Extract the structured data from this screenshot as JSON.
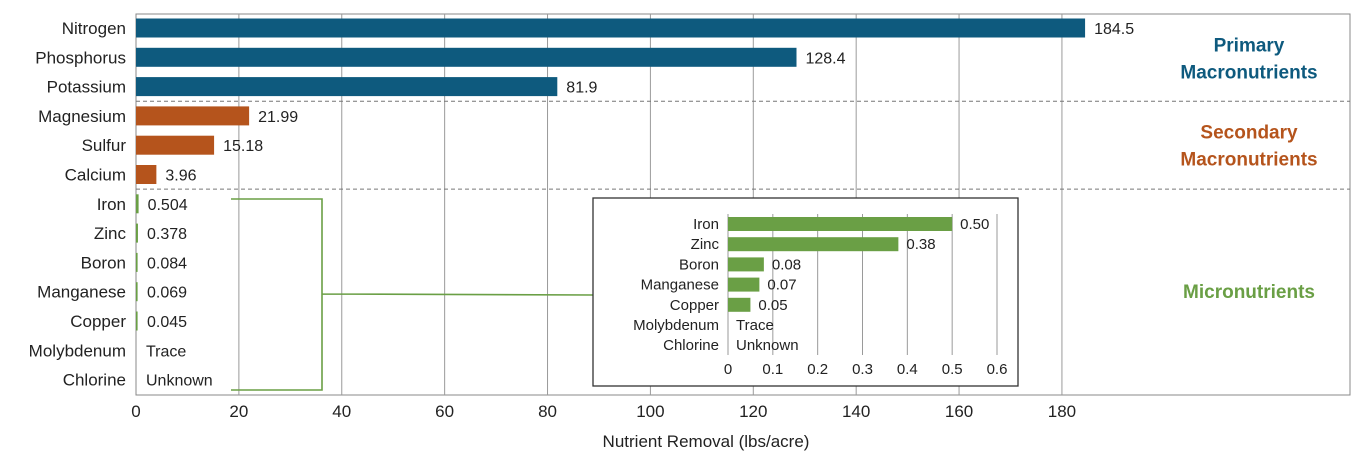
{
  "chart_data": {
    "type": "bar",
    "orientation": "horizontal",
    "xlabel": "Nutrient Removal (lbs/acre)",
    "xlim": [
      0,
      236
    ],
    "xticks": [
      0,
      20,
      40,
      60,
      80,
      100,
      120,
      140,
      160,
      180
    ],
    "grid": true,
    "categories": [
      "Nitrogen",
      "Phosphorus",
      "Potassium",
      "Magnesium",
      "Sulfur",
      "Calcium",
      "Iron",
      "Zinc",
      "Boron",
      "Manganese",
      "Copper",
      "Molybdenum",
      "Chlorine"
    ],
    "values": [
      184.5,
      128.4,
      81.9,
      21.99,
      15.18,
      3.96,
      0.504,
      0.378,
      0.084,
      0.069,
      0.045,
      null,
      null
    ],
    "value_labels": [
      "184.5",
      "128.4",
      "81.9",
      "21.99",
      "15.18",
      "3.96",
      "0.504",
      "0.378",
      "0.084",
      "0.069",
      "0.045",
      "Trace",
      "Unknown"
    ],
    "groups": [
      {
        "label_lines": [
          "Primary",
          "Macronutrients"
        ],
        "color": "#0e5a7e",
        "categories": [
          "Nitrogen",
          "Phosphorus",
          "Potassium"
        ]
      },
      {
        "label_lines": [
          "Secondary",
          "Macronutrients"
        ],
        "color": "#b5541c",
        "categories": [
          "Magnesium",
          "Sulfur",
          "Calcium"
        ]
      },
      {
        "label_lines": [
          "Micronutrients"
        ],
        "color": "#6a9f45",
        "categories": [
          "Iron",
          "Zinc",
          "Boron",
          "Manganese",
          "Copper",
          "Molybdenum",
          "Chlorine"
        ]
      }
    ],
    "inset": {
      "type": "bar",
      "orientation": "horizontal",
      "xlim": [
        0,
        0.6
      ],
      "xticks": [
        0,
        0.1,
        0.2,
        0.3,
        0.4,
        0.5,
        0.6
      ],
      "xtick_labels": [
        "0",
        "0.1",
        "0.2",
        "0.3",
        "0.4",
        "0.5",
        "0.6"
      ],
      "grid": true,
      "color": "#6a9f45",
      "categories": [
        "Iron",
        "Zinc",
        "Boron",
        "Manganese",
        "Copper",
        "Molybdenum",
        "Chlorine"
      ],
      "values": [
        0.5,
        0.38,
        0.08,
        0.07,
        0.05,
        null,
        null
      ],
      "value_labels": [
        "0.50",
        "0.38",
        "0.08",
        "0.07",
        "0.05",
        "Trace",
        "Unknown"
      ]
    }
  }
}
